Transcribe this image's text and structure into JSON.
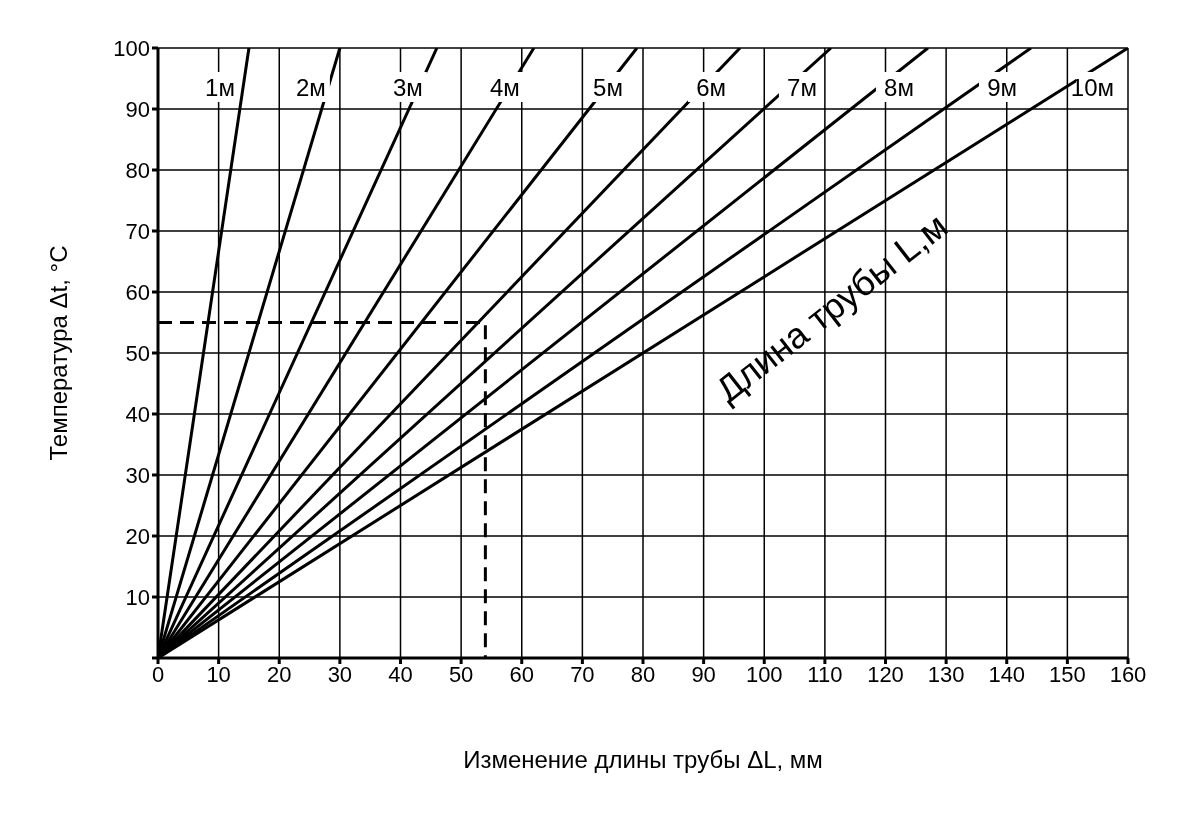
{
  "chart_data": {
    "type": "line",
    "xlabel": "Изменение длины трубы  ΔL, мм",
    "ylabel": "Температура Δt, °C",
    "annotations": [
      "Длина трубы L,м"
    ],
    "xlim": [
      0,
      160
    ],
    "xticks": [
      0,
      10,
      20,
      30,
      40,
      50,
      60,
      70,
      80,
      90,
      100,
      110,
      120,
      130,
      140,
      150,
      160
    ],
    "ylim": [
      0,
      100
    ],
    "yticks": [
      {
        "value": 0,
        "label": null
      },
      10,
      20,
      30,
      40,
      50,
      60,
      70,
      80,
      90,
      100
    ],
    "grid": true,
    "marker": "none",
    "line_style": "solid",
    "series": [
      {
        "name": "1м",
        "color": "#000000",
        "x": [
          0,
          15
        ],
        "values": [
          0,
          100
        ]
      },
      {
        "name": "2м",
        "color": "#000000",
        "x": [
          0,
          30
        ],
        "values": [
          0,
          100
        ]
      },
      {
        "name": "3м",
        "color": "#000000",
        "x": [
          0,
          46
        ],
        "values": [
          0,
          100
        ]
      },
      {
        "name": "4м",
        "color": "#000000",
        "x": [
          0,
          62
        ],
        "values": [
          0,
          100
        ]
      },
      {
        "name": "5м",
        "color": "#000000",
        "x": [
          0,
          79
        ],
        "values": [
          0,
          100
        ]
      },
      {
        "name": "6м",
        "color": "#000000",
        "x": [
          0,
          96
        ],
        "values": [
          0,
          100
        ]
      },
      {
        "name": "7м",
        "color": "#000000",
        "x": [
          0,
          111
        ],
        "values": [
          0,
          100
        ]
      },
      {
        "name": "8м",
        "color": "#000000",
        "x": [
          0,
          127
        ],
        "values": [
          0,
          100
        ]
      },
      {
        "name": "9м",
        "color": "#000000",
        "x": [
          0,
          144
        ],
        "values": [
          0,
          100
        ]
      },
      {
        "name": "10м",
        "color": "#000000",
        "x": [
          0,
          160
        ],
        "values": [
          0,
          100
        ]
      },
      {
        "color": "#000000",
        "line_style": "dashed",
        "x": [
          0,
          54,
          54
        ],
        "values": [
          55,
          55,
          0
        ]
      }
    ]
  }
}
